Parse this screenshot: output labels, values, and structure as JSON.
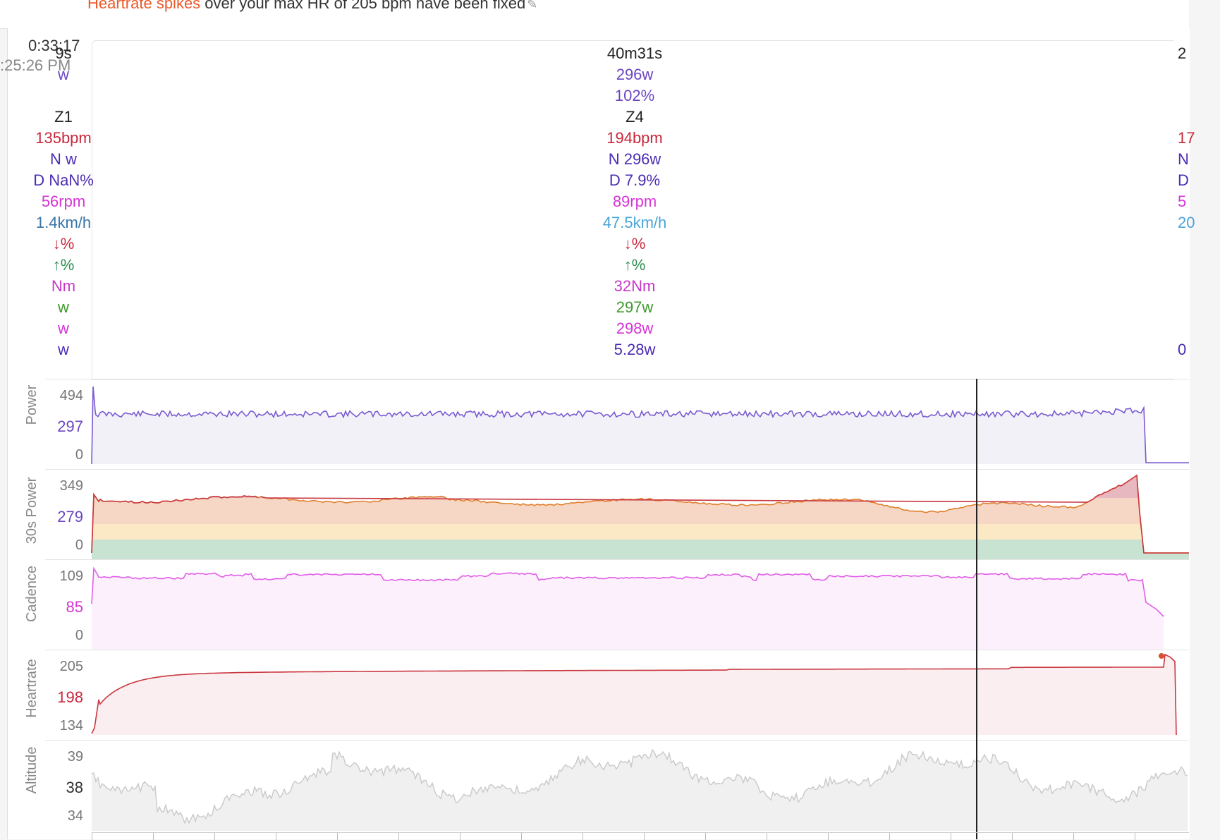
{
  "banner": {
    "link_text": "Heartrate spikes",
    "message": " over your max HR of 205 bpm have been fixed",
    "edit_icon": "pencil-icon"
  },
  "cursor": {
    "elapsed": "0:33:17",
    "clock": ":25:26 PM"
  },
  "intervals": {
    "left": [
      "9s",
      "w",
      "",
      "Z1",
      "135bpm",
      "N w",
      "D NaN%",
      "56rpm",
      "1.4km/h",
      "↓%",
      "↑%",
      "Nm",
      "w",
      "w",
      "w"
    ],
    "mid": [
      "40m31s",
      "296w",
      "102%",
      "Z4",
      "194bpm",
      "N 296w",
      "D 7.9%",
      "89rpm",
      "47.5km/h",
      "↓%",
      "↑%",
      "32Nm",
      "297w",
      "298w",
      "5.28w"
    ],
    "right": [
      "2",
      "",
      "",
      "",
      "17",
      "N",
      "D",
      "5",
      "20",
      "",
      "",
      "",
      "",
      "",
      "0"
    ]
  },
  "charts": [
    {
      "label": "Power",
      "ticks": [
        "494",
        "297",
        "0"
      ],
      "color": "#7a5bd0",
      "fill": "#f2f1f8"
    },
    {
      "label": "30s Power",
      "ticks": [
        "349",
        "279",
        "0"
      ],
      "color": "#e0802c",
      "fill": "#f8ddc8"
    },
    {
      "label": "Cadence",
      "ticks": [
        "109",
        "85",
        "0"
      ],
      "color": "#e25ee8",
      "fill": "#fbf0fb"
    },
    {
      "label": "Heartrate",
      "ticks": [
        "205",
        "198",
        "134"
      ],
      "color": "#c9373f",
      "fill": "#fbeef0"
    },
    {
      "label": "Altitude",
      "ticks": [
        "39",
        "38",
        "34"
      ],
      "color": "#c9c9c9",
      "fill": "#f0f0f0"
    }
  ]
}
